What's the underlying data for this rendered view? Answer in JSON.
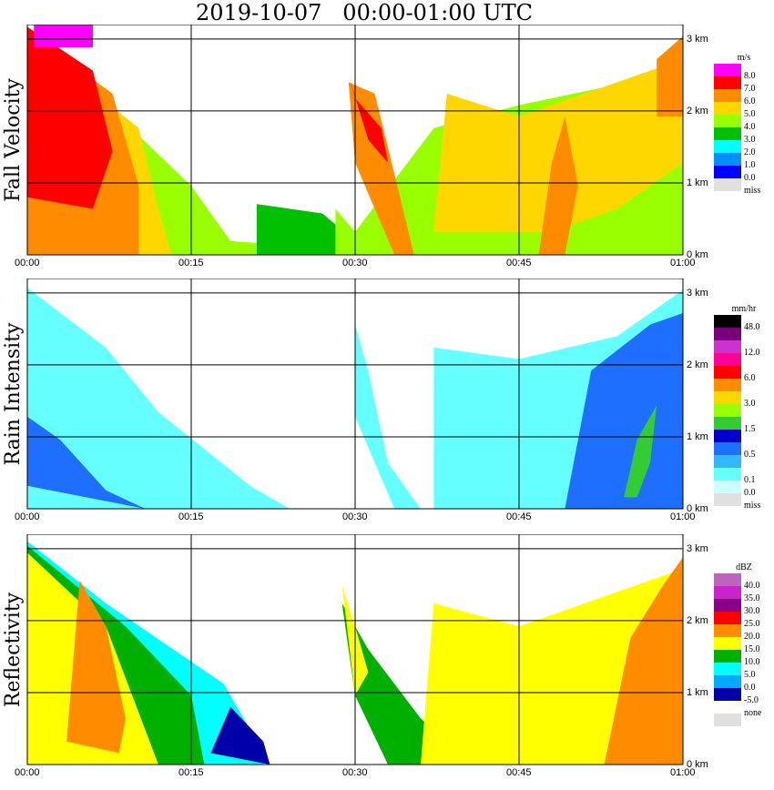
{
  "title": "2019-10-07   00:00-01:00 UTC",
  "x_ticks": [
    "00:00",
    "00:15",
    "00:30",
    "00:45",
    "01:00"
  ],
  "y_ticks": [
    "0 km",
    "1 km",
    "2 km",
    "3 km"
  ],
  "colors": {
    "missing": "#e0e0e0",
    "grid": "#000000"
  },
  "chart_data": [
    {
      "type": "heatmap",
      "ylabel": "Fall Velocity",
      "x_range": [
        "00:00",
        "01:00"
      ],
      "y_range_km": [
        0,
        3.2
      ],
      "grid": true,
      "legend": {
        "unit": "m/s",
        "entries": [
          {
            "label": "8.0",
            "color": "#ff00ff"
          },
          {
            "label": "7.0",
            "color": "#ff0000"
          },
          {
            "label": "6.0",
            "color": "#ff8c00"
          },
          {
            "label": "5.0",
            "color": "#ffd700"
          },
          {
            "label": "4.0",
            "color": "#99ff00"
          },
          {
            "label": "3.0",
            "color": "#00c000"
          },
          {
            "label": "2.0",
            "color": "#00ffff"
          },
          {
            "label": "1.0",
            "color": "#0090ff"
          },
          {
            "label": "0.0",
            "color": "#0000ff"
          },
          {
            "label": "miss",
            "color": "#e0e0e0"
          }
        ]
      }
    },
    {
      "type": "heatmap",
      "ylabel": "Rain Intensity",
      "x_range": [
        "00:00",
        "01:00"
      ],
      "y_range_km": [
        0,
        3.2
      ],
      "grid": true,
      "legend": {
        "unit": "mm/hr",
        "entries": [
          {
            "label": "48.0",
            "color": "#000000"
          },
          {
            "label": "",
            "color": "#7a007a"
          },
          {
            "label": "12.0",
            "color": "#cc33cc"
          },
          {
            "label": "",
            "color": "#ff0099"
          },
          {
            "label": "6.0",
            "color": "#ff0000"
          },
          {
            "label": "",
            "color": "#ff8c00"
          },
          {
            "label": "3.0",
            "color": "#ffd700"
          },
          {
            "label": "",
            "color": "#99ff00"
          },
          {
            "label": "1.5",
            "color": "#33cc33"
          },
          {
            "label": "",
            "color": "#0000cc"
          },
          {
            "label": "0.5",
            "color": "#1e6eff"
          },
          {
            "label": "",
            "color": "#33b8ff"
          },
          {
            "label": "0.1",
            "color": "#66ffff"
          },
          {
            "label": "0.0",
            "color": "#ccffff"
          },
          {
            "label": "miss",
            "color": "#e0e0e0"
          }
        ]
      }
    },
    {
      "type": "heatmap",
      "ylabel": "Reflectivity",
      "x_range": [
        "00:00",
        "01:00"
      ],
      "y_range_km": [
        0,
        3.2
      ],
      "grid": true,
      "legend": {
        "unit": "dBZ",
        "entries": [
          {
            "label": "40.0",
            "color": "#bb66bb"
          },
          {
            "label": "35.0",
            "color": "#cc22cc"
          },
          {
            "label": "30.0",
            "color": "#880088"
          },
          {
            "label": "25.0",
            "color": "#ff0000"
          },
          {
            "label": "20.0",
            "color": "#ff8c00"
          },
          {
            "label": "15.0",
            "color": "#ffff00"
          },
          {
            "label": "10.0",
            "color": "#00b000"
          },
          {
            "label": "5.0",
            "color": "#00ffff"
          },
          {
            "label": "0.0",
            "color": "#00aaff"
          },
          {
            "label": "-5.0",
            "color": "#0000aa"
          },
          {
            "label": "none",
            "color": "#ffffff"
          },
          {
            "label": "",
            "color": "#e0e0e0"
          }
        ]
      }
    }
  ]
}
